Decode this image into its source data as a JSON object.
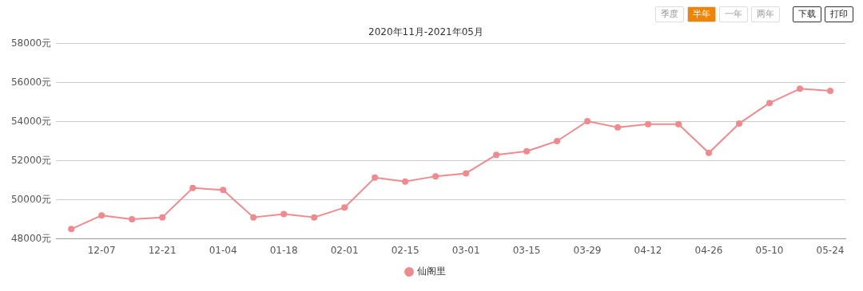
{
  "chart_data": {
    "type": "line",
    "title": "2020年11月-2021年05月",
    "categories": [
      null,
      "12-07",
      null,
      "12-21",
      null,
      "01-04",
      null,
      "01-18",
      null,
      "02-01",
      null,
      "02-15",
      null,
      "03-01",
      null,
      "03-15",
      null,
      "03-29",
      null,
      "04-12",
      null,
      "04-26",
      null,
      "05-10",
      null,
      "05-24"
    ],
    "series": [
      {
        "name": "仙阁里",
        "color": "#f08a8e",
        "values": [
          48500,
          49200,
          49000,
          49100,
          50600,
          50500,
          49100,
          49270,
          49100,
          49600,
          51130,
          50930,
          51200,
          51350,
          52300,
          52480,
          53000,
          54020,
          53700,
          53870,
          53870,
          52400,
          53900,
          54950,
          55680,
          55570
        ]
      }
    ],
    "ylim": [
      48000,
      58000
    ],
    "yticks": [
      {
        "value": 48000,
        "label": "48000元"
      },
      {
        "value": 50000,
        "label": "50000元"
      },
      {
        "value": 52000,
        "label": "52000元"
      },
      {
        "value": 54000,
        "label": "54000元"
      },
      {
        "value": 56000,
        "label": "56000元"
      },
      {
        "value": 58000,
        "label": "58000元"
      }
    ],
    "grid": "y",
    "legend": "bottom",
    "marker": "circle",
    "line_style": "solid",
    "annotations": [
      "季度",
      "半年",
      "一年",
      "两年",
      "下载",
      "打印"
    ]
  }
}
